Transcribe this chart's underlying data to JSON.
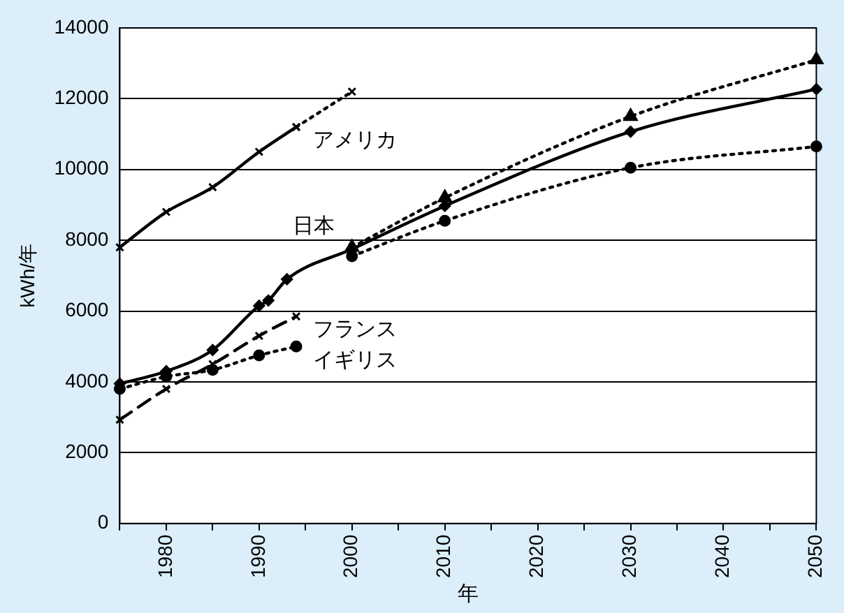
{
  "chart_data": {
    "type": "line",
    "xlabel": "年",
    "ylabel": "kWh/年",
    "xlim": [
      1975,
      2050
    ],
    "xticks": [
      {
        "value": 1975,
        "label": null
      },
      1980,
      {
        "value": 1985,
        "label": null
      },
      1990,
      {
        "value": 1995,
        "label": null
      },
      2000,
      {
        "value": 2005,
        "label": null
      },
      2010,
      {
        "value": 2015,
        "label": null
      },
      2020,
      {
        "value": 2025,
        "label": null
      },
      2030,
      {
        "value": 2035,
        "label": null
      },
      2040,
      {
        "value": 2045,
        "label": null
      },
      2050
    ],
    "ylim": [
      0,
      14000
    ],
    "yticks": [
      0,
      2000,
      4000,
      6000,
      8000,
      10000,
      12000,
      14000
    ],
    "grid": "y",
    "legend": false,
    "series": [
      {
        "name": "アメリカ",
        "color": "#000000",
        "marker": "cross",
        "line_style": "solid",
        "x": [
          1975,
          1980,
          1985,
          1990,
          1994
        ],
        "values": [
          7800,
          8800,
          9500,
          10500,
          11200
        ]
      },
      {
        "color": "#000000",
        "marker": "cross",
        "line_style": "dotted",
        "x": [
          1994,
          2000
        ],
        "values": [
          11200,
          12200
        ]
      },
      {
        "name": "日本",
        "color": "#000000",
        "marker": "diamond",
        "line_style": "solid",
        "x": [
          1975,
          1980,
          1985,
          1990,
          1991,
          1993,
          2000,
          2010,
          2030,
          2050
        ],
        "values": [
          3950,
          4300,
          4900,
          6150,
          6300,
          6900,
          7750,
          8970,
          11070,
          12270
        ]
      },
      {
        "color": "#000000",
        "marker": "triangle",
        "line_style": "dotted",
        "x": [
          2000,
          2010,
          2030,
          2050
        ],
        "values": [
          7800,
          9200,
          11500,
          13100
        ]
      },
      {
        "color": "#000000",
        "marker": "circle",
        "line_style": "dotted",
        "x": [
          2000,
          2010,
          2030,
          2050
        ],
        "values": [
          7550,
          8550,
          10050,
          10650
        ]
      },
      {
        "name": "フランス",
        "color": "#000000",
        "marker": "cross",
        "line_style": "dashed",
        "x": [
          1975,
          1980,
          1985,
          1990,
          1994
        ],
        "values": [
          2930,
          3800,
          4500,
          5300,
          5850
        ]
      },
      {
        "name": "イギリス",
        "color": "#000000",
        "marker": "circle",
        "line_style": "dotted",
        "x": [
          1975,
          1980,
          1985,
          1990,
          1994
        ],
        "values": [
          3800,
          4150,
          4340,
          4750,
          5000
        ]
      }
    ]
  }
}
